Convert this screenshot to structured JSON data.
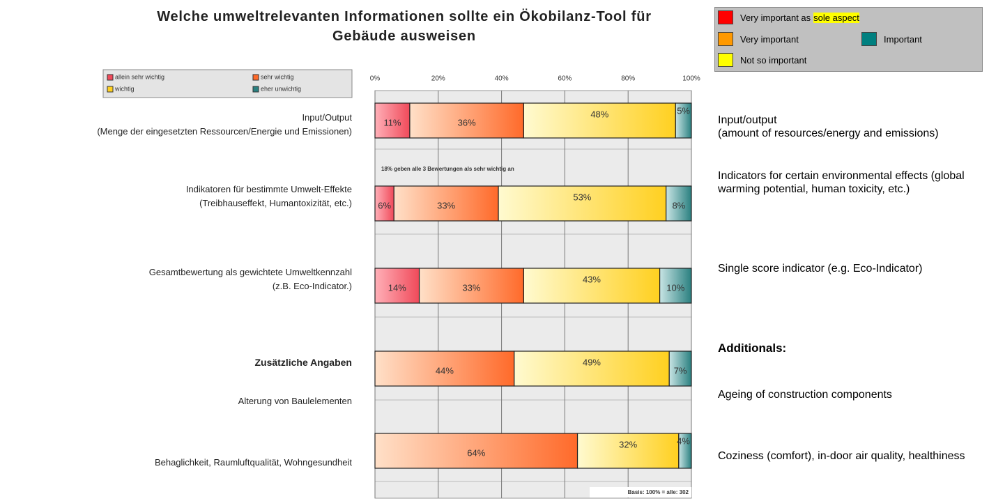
{
  "chart_data": {
    "type": "bar",
    "title": "Welche umweltrelevanten Informationen sollte ein Ökobilanz-Tool für\nGebäude ausweisen",
    "categories": [
      "Input/Output\n(Menge der eingesetzten Ressourcen/Energie und Emissionen)",
      "Indikatoren für bestimmte Umwelt-Effekte\n(Treibhauseffekt, Humantoxizität, etc.)",
      "Gesamtbewertung als gewichtete Umweltkennzahl\n(z.B. Eco-Indicator.)",
      "Alterung von Baulelementen",
      "Behaglichkeit, Raumluftqualität, Wohngesundheit"
    ],
    "categories_en": [
      "Input/output\n(amount of resources/energy and emissions)",
      "Indicators for certain environmental effects (global warming potential, human toxicity, etc.)",
      "Single score indicator (e.g. Eco-Indicator)",
      "Ageing of construction components",
      "Coziness (comfort), in-door air quality, healthiness"
    ],
    "group_label": "Zusätzliche Angaben",
    "group_label_en": "Additionals:",
    "series": [
      {
        "name": "allein sehr wichtig",
        "color": "#f04a5a",
        "values": [
          11,
          6,
          14,
          null,
          null
        ],
        "value_labels": [
          "11%",
          "6%",
          "14%",
          null,
          null
        ]
      },
      {
        "name": "sehr wichtig",
        "color": "#ff6a2a",
        "values": [
          36,
          33,
          33,
          44,
          64
        ],
        "value_labels": [
          "36%",
          "33%",
          "33%",
          "44%",
          "64%"
        ]
      },
      {
        "name": "wichtig",
        "color": "#ffd020",
        "values": [
          48,
          53,
          43,
          49,
          32
        ],
        "value_labels": [
          "48%",
          "53%",
          "43%",
          "49%",
          "32%"
        ]
      },
      {
        "name": "eher unwichtig",
        "color": "#2a8080",
        "values": [
          5,
          8,
          10,
          7,
          4
        ],
        "value_labels": [
          "5%",
          "8%",
          "10%",
          "7%",
          "4%"
        ]
      }
    ],
    "xlim": [
      0,
      100
    ],
    "xticks": [
      {
        "value": 0,
        "label": "0%"
      },
      {
        "value": 20,
        "label": "20%"
      },
      {
        "value": 40,
        "label": "40%"
      },
      {
        "value": 60,
        "label": "60%"
      },
      {
        "value": 80,
        "label": "80%"
      },
      {
        "value": 100,
        "label": "100%"
      }
    ],
    "grid": true,
    "annotations": [
      "18% geben alle 3 Bewertungen als sehr wichtig an",
      "Basis: 100% = alle: 302"
    ],
    "legend_en": [
      {
        "name": "Very important as",
        "highlight": "sole aspect",
        "color": "#ff0000"
      },
      {
        "name": "Very important",
        "color": "#ff9900"
      },
      {
        "name": "Important",
        "color": "#008080"
      },
      {
        "name": "Not so important",
        "color": "#ffff00"
      }
    ]
  }
}
